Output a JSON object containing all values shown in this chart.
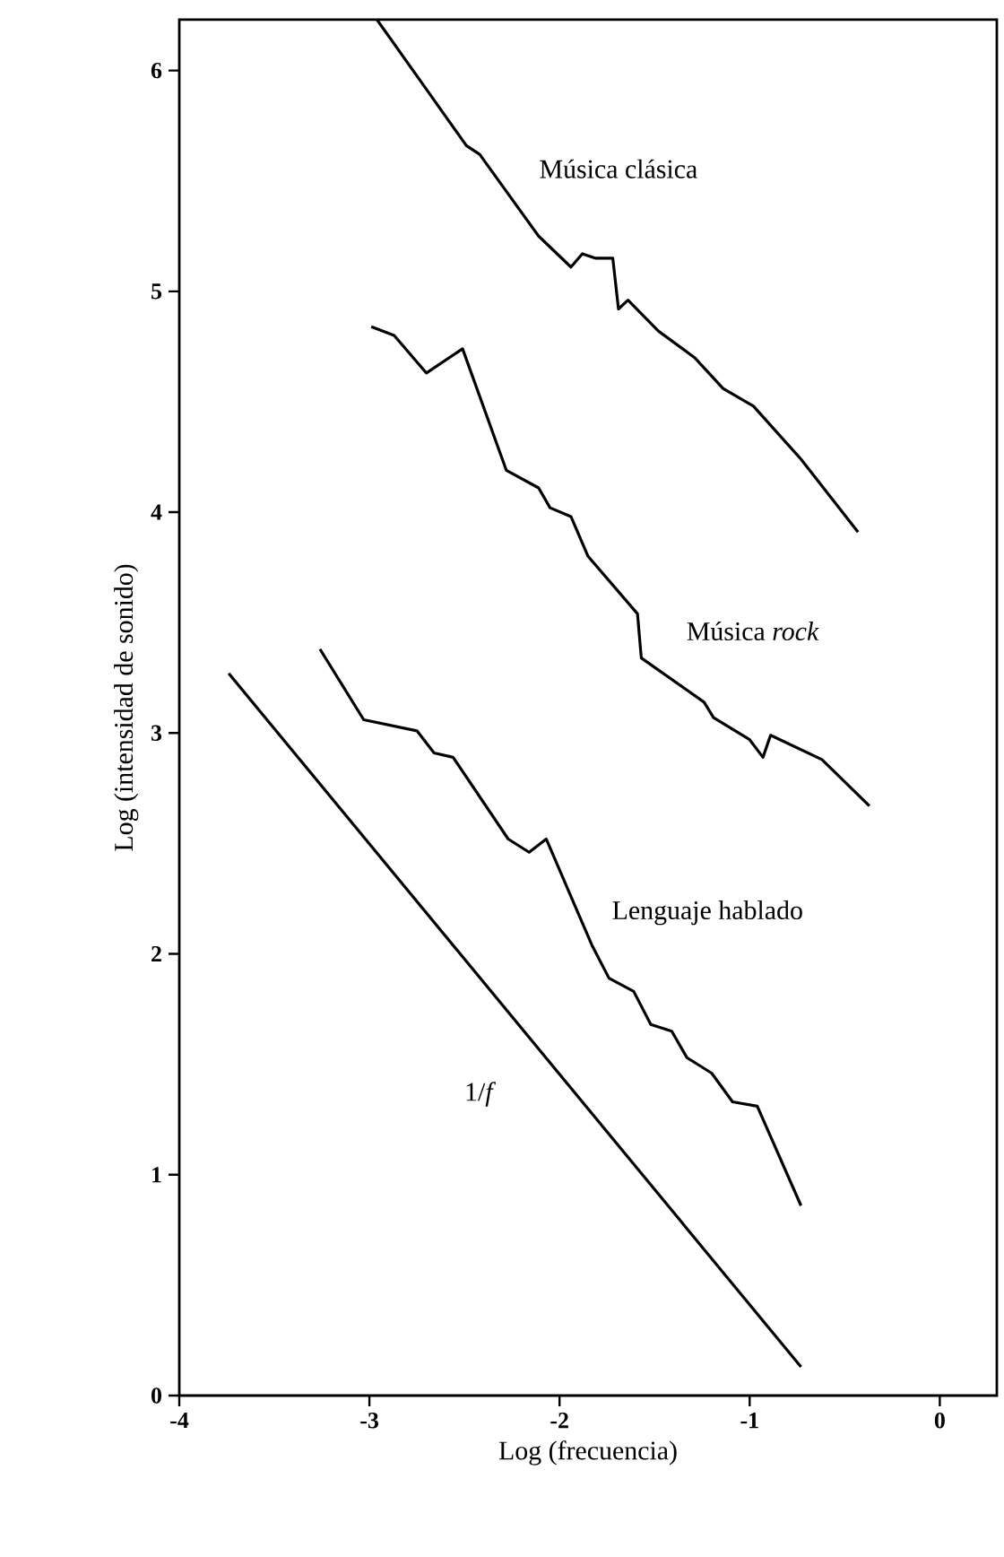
{
  "chart_data": {
    "type": "line",
    "xlabel": "Log (frecuencia)",
    "ylabel": "Log (intensidad de sonido)",
    "xlim": [
      -4,
      0.3
    ],
    "ylim": [
      0,
      6.23
    ],
    "xticks": [
      -4,
      -3,
      -2,
      -1,
      0
    ],
    "yticks": [
      0,
      1,
      2,
      3,
      4,
      5,
      6
    ],
    "series": [
      {
        "name": "Música clásica",
        "color": "#000000",
        "x": [
          -2.96,
          -2.68,
          -2.49,
          -2.42,
          -2.11,
          -1.94,
          -1.88,
          -1.81,
          -1.72,
          -1.69,
          -1.64,
          -1.48,
          -1.29,
          -1.14,
          -0.98,
          -0.73,
          -0.43
        ],
        "values": [
          6.23,
          5.89,
          5.66,
          5.62,
          5.25,
          5.11,
          5.17,
          5.15,
          5.15,
          4.92,
          4.96,
          4.82,
          4.7,
          4.56,
          4.48,
          4.24,
          3.91
        ]
      },
      {
        "name": "Música *rock*",
        "color": "#000000",
        "x": [
          -2.99,
          -2.87,
          -2.7,
          -2.51,
          -2.28,
          -2.11,
          -2.05,
          -1.94,
          -1.85,
          -1.59,
          -1.57,
          -1.24,
          -1.19,
          -1.0,
          -0.93,
          -0.89,
          -0.62,
          -0.37
        ],
        "values": [
          4.84,
          4.8,
          4.63,
          4.74,
          4.19,
          4.11,
          4.02,
          3.98,
          3.8,
          3.54,
          3.34,
          3.14,
          3.07,
          2.97,
          2.89,
          2.99,
          2.88,
          2.67
        ]
      },
      {
        "name": "Lenguaje hablado",
        "color": "#000000",
        "x": [
          -3.26,
          -3.03,
          -2.75,
          -2.66,
          -2.56,
          -2.27,
          -2.16,
          -2.07,
          -1.83,
          -1.74,
          -1.61,
          -1.52,
          -1.41,
          -1.33,
          -1.2,
          -1.09,
          -0.96,
          -0.73
        ],
        "values": [
          3.38,
          3.06,
          3.01,
          2.91,
          2.89,
          2.52,
          2.46,
          2.52,
          2.04,
          1.89,
          1.83,
          1.68,
          1.65,
          1.53,
          1.46,
          1.33,
          1.31,
          0.86
        ]
      },
      {
        "name": "1/*f*",
        "color": "#000000",
        "x": [
          -3.74,
          -0.73
        ],
        "values": [
          3.27,
          0.13
        ]
      }
    ]
  }
}
